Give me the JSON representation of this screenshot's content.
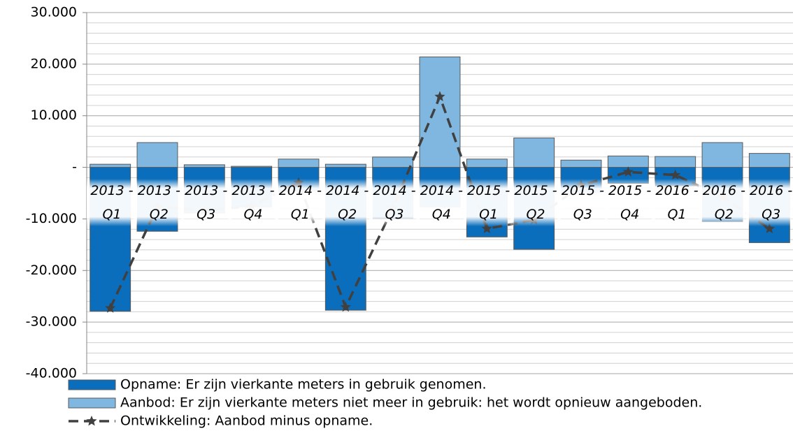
{
  "chart_data": {
    "type": "bar",
    "categories": [
      "2013 - Q1",
      "2013 - Q2",
      "2013 - Q3",
      "2013 - Q4",
      "2014 - Q1",
      "2014 - Q2",
      "2014 - Q3",
      "2014 - Q4",
      "2015 - Q1",
      "2015 - Q2",
      "2015 - Q3",
      "2015 - Q4",
      "2016 - Q1",
      "2016 - Q2",
      "2016 - Q3"
    ],
    "series": [
      {
        "name": "Opname: Er zijn vierkante meters in gebruik genomen.",
        "kind": "bar",
        "color": "#0a6ebd",
        "values": [
          -27900,
          -12400,
          -8900,
          -7700,
          -4600,
          -27700,
          -9900,
          -7700,
          -13500,
          -15900,
          -4900,
          -3100,
          -3600,
          -10500,
          -14600
        ]
      },
      {
        "name": "Aanbod: Er zijn vierkante meters niet meer in gebruik: het wordt opnieuw aangeboden.",
        "kind": "bar",
        "color": "#7fb7e1",
        "values": [
          600,
          4800,
          500,
          200,
          1600,
          600,
          2000,
          21400,
          1600,
          5700,
          1400,
          2200,
          2100,
          4800,
          2700
        ]
      },
      {
        "name": "Ontwikkeling: Aanbod minus opname.",
        "kind": "line",
        "color": "#404040",
        "values": [
          -27300,
          -7600,
          -8400,
          -7500,
          -3000,
          -27100,
          -7900,
          13700,
          -11900,
          -10200,
          -3500,
          -900,
          -1500,
          -5700,
          -11900
        ]
      }
    ],
    "ylim": [
      -40000,
      30000
    ],
    "yticks": [
      {
        "value": -40000,
        "label": "-40.000"
      },
      {
        "value": -30000,
        "label": "-30.000"
      },
      {
        "value": -20000,
        "label": "-20.000"
      },
      {
        "value": -10000,
        "label": "-10.000"
      },
      {
        "value": 0,
        "label": "-"
      },
      {
        "value": 10000,
        "label": "10.000"
      },
      {
        "value": 20000,
        "label": "20.000"
      },
      {
        "value": 30000,
        "label": "30.000"
      }
    ],
    "minor_yticks": [
      -38000,
      -36000,
      -34000,
      -32000,
      -28000,
      -26000,
      -24000,
      -22000,
      -18000,
      -16000,
      -14000,
      -12000,
      -8000,
      -6000,
      -4000,
      -2000,
      2000,
      4000,
      6000,
      8000,
      12000,
      14000,
      16000,
      18000,
      22000,
      24000,
      26000,
      28000
    ],
    "grid": true
  }
}
